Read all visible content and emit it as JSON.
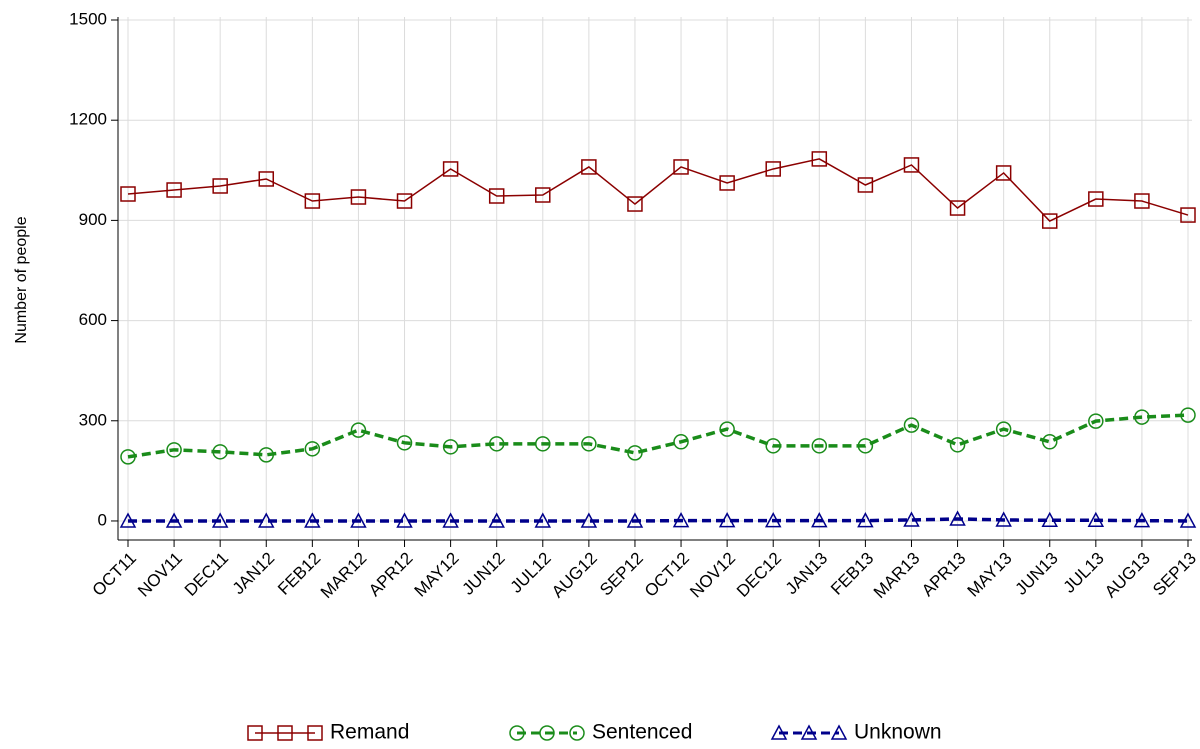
{
  "chart_data": {
    "type": "line",
    "y_label": "Number of people",
    "categories": [
      "OCT11",
      "NOV11",
      "DEC11",
      "JAN12",
      "FEB12",
      "MAR12",
      "APR12",
      "MAY12",
      "JUN12",
      "JUL12",
      "AUG12",
      "SEP12",
      "OCT12",
      "NOV12",
      "DEC12",
      "JAN13",
      "FEB13",
      "MAR13",
      "APR13",
      "MAY13",
      "JUN13",
      "JUL13",
      "AUG13",
      "SEP13"
    ],
    "series": [
      {
        "name": "Remand",
        "color": "#8b0000",
        "marker": "square",
        "dash": "solid",
        "values": [
          979,
          991,
          1003,
          1024,
          958,
          970,
          958,
          1054,
          973,
          976,
          1060,
          949,
          1060,
          1012,
          1054,
          1084,
          1006,
          1066,
          937,
          1042,
          898,
          964,
          958,
          916
        ]
      },
      {
        "name": "Sentenced",
        "color": "#1a8c1a",
        "marker": "circle",
        "dash": "dashed",
        "values": [
          192,
          213,
          207,
          198,
          216,
          272,
          234,
          222,
          231,
          231,
          231,
          204,
          237,
          275,
          225,
          225,
          225,
          287,
          228,
          275,
          237,
          299,
          311,
          317
        ]
      },
      {
        "name": "Unknown",
        "color": "#00008b",
        "marker": "triangle",
        "dash": "dashed",
        "values": [
          0,
          0,
          0,
          0,
          0,
          0,
          0,
          0,
          0,
          0,
          0,
          0,
          1,
          1,
          1,
          1,
          1,
          3,
          6,
          3,
          2,
          2,
          1,
          0
        ]
      }
    ],
    "ylim": [
      -57,
      1509
    ],
    "yticks": [
      0,
      300,
      600,
      900,
      1200,
      1500
    ],
    "grid": true
  }
}
